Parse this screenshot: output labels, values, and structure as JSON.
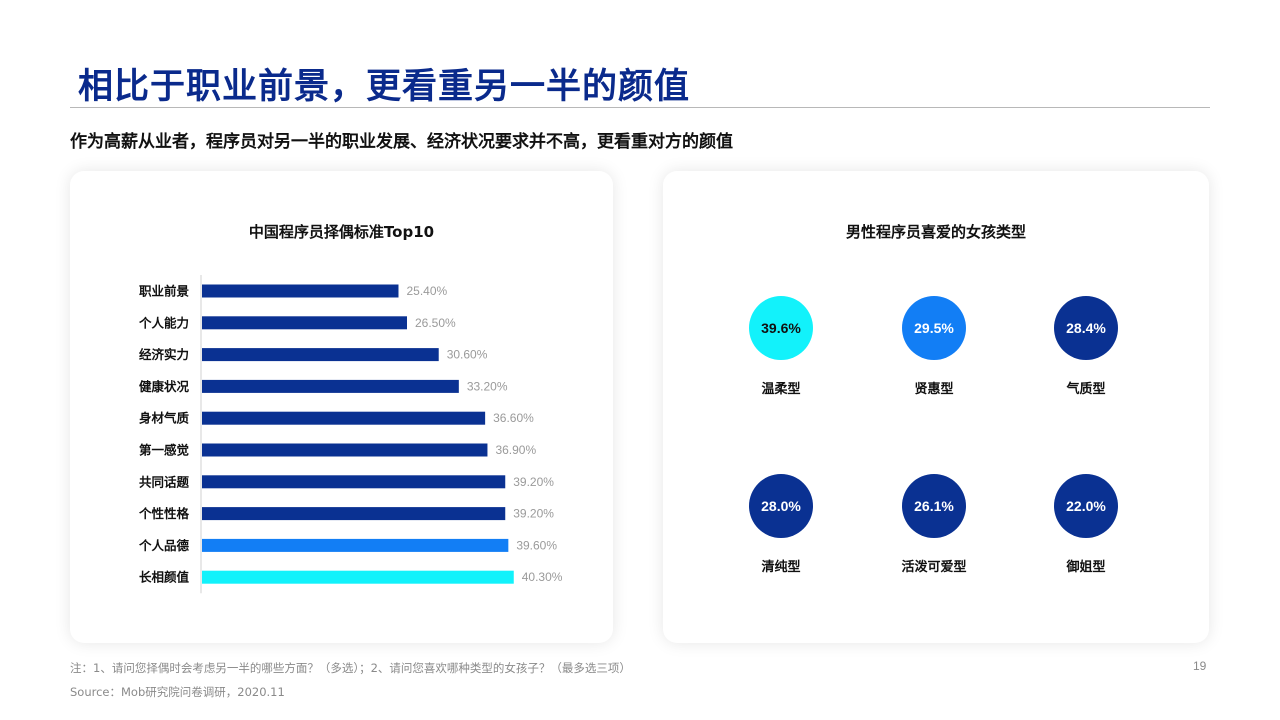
{
  "header": {
    "title": "相比于职业前景，更看重另一半的颜值",
    "subtitle": "作为高薪从业者，程序员对另一半的职业发展、经济状况要求并不高，更看重对方的颜值"
  },
  "chart_data": [
    {
      "type": "bar",
      "orientation": "horizontal",
      "title": "中国程序员择偶标准Top10",
      "categories": [
        "职业前景",
        "个人能力",
        "经济实力",
        "健康状况",
        "身材气质",
        "第一感觉",
        "共同话题",
        "个性性格",
        "个人品德",
        "长相颜值"
      ],
      "values": [
        25.4,
        26.5,
        30.6,
        33.2,
        36.6,
        36.9,
        39.2,
        39.2,
        39.6,
        40.3
      ],
      "value_labels": [
        "25.40%",
        "26.50%",
        "30.60%",
        "33.20%",
        "36.60%",
        "36.90%",
        "39.20%",
        "39.20%",
        "39.60%",
        "40.30%"
      ],
      "bar_colors": [
        "#0a3192",
        "#0a3192",
        "#0a3192",
        "#0a3192",
        "#0a3192",
        "#0a3192",
        "#0a3192",
        "#0a3192",
        "#127ef5",
        "#12f2fb"
      ],
      "xlim": [
        0,
        53
      ],
      "grid": false,
      "legend": "none",
      "xlabel": "",
      "ylabel": ""
    },
    {
      "type": "bubble",
      "title": "男性程序员喜爱的女孩类型",
      "items": [
        {
          "label": "温柔型",
          "value": "39.6%",
          "color": "#12f2fb",
          "text_color": "#111111"
        },
        {
          "label": "贤惠型",
          "value": "29.5%",
          "color": "#127ef5",
          "text_color": "#ffffff"
        },
        {
          "label": "气质型",
          "value": "28.4%",
          "color": "#0a3192",
          "text_color": "#ffffff"
        },
        {
          "label": "清纯型",
          "value": "28.0%",
          "color": "#0a3192",
          "text_color": "#ffffff"
        },
        {
          "label": "活泼可爱型",
          "value": "26.1%",
          "color": "#0a3192",
          "text_color": "#ffffff"
        },
        {
          "label": "御姐型",
          "value": "22.0%",
          "color": "#0a3192",
          "text_color": "#ffffff"
        }
      ]
    }
  ],
  "footer": {
    "note": "注：1、请问您择偶时会考虑另一半的哪些方面？（多选）；2、请问您喜欢哪种类型的女孩子？（最多选三项）",
    "source": "Source：Mob研究院问卷调研，2020.11",
    "page_number": "19"
  }
}
